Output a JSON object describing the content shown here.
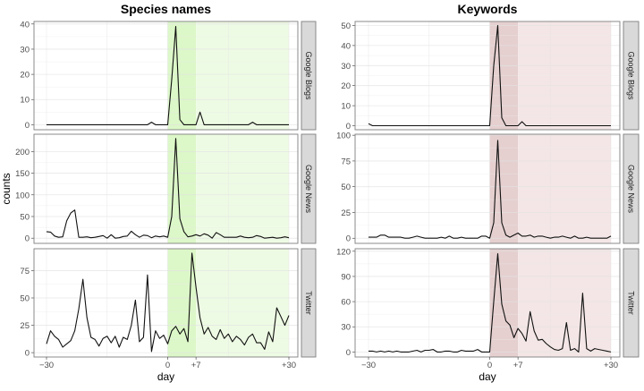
{
  "chart_data": [
    {
      "type": "line",
      "title": "Species names",
      "xlabel": "day",
      "ylabel": "counts",
      "x_range": [
        -30,
        30
      ],
      "x_ticks": [
        -30,
        0,
        7,
        30
      ],
      "x_tick_labels": [
        "−30",
        "0",
        "+7",
        "+30"
      ],
      "highlight_windows": [
        {
          "from": 0,
          "to": 7,
          "color": "#dcf7c8"
        },
        {
          "from": 7,
          "to": 30,
          "color": "#eefbe4"
        }
      ],
      "panels": [
        {
          "name": "Google Blogs",
          "ylim": [
            -2,
            41
          ],
          "y_ticks": [
            0,
            10,
            20,
            30,
            40
          ],
          "values": [
            0,
            0,
            0,
            0,
            0,
            0,
            0,
            0,
            0,
            0,
            0,
            0,
            0,
            0,
            0,
            0,
            0,
            0,
            0,
            0,
            0,
            0,
            0,
            0,
            0,
            0,
            1,
            0,
            0,
            0,
            0,
            18,
            39,
            2,
            0,
            0,
            0,
            0,
            5,
            0,
            0,
            0,
            0,
            0,
            0,
            0,
            0,
            0,
            0,
            0,
            0,
            1,
            0,
            0,
            0,
            0,
            0,
            0,
            0,
            0,
            0
          ]
        },
        {
          "name": "Google News",
          "ylim": [
            -12,
            240
          ],
          "y_ticks": [
            0,
            50,
            100,
            150,
            200
          ],
          "values": [
            15,
            14,
            5,
            2,
            3,
            40,
            58,
            65,
            2,
            2,
            3,
            1,
            2,
            4,
            6,
            0,
            8,
            0,
            1,
            4,
            5,
            16,
            8,
            2,
            7,
            6,
            1,
            5,
            3,
            5,
            2,
            50,
            230,
            45,
            15,
            3,
            5,
            8,
            5,
            10,
            7,
            0,
            13,
            8,
            2,
            2,
            2,
            2,
            5,
            2,
            1,
            2,
            6,
            4,
            0,
            1,
            2,
            0,
            1,
            3,
            1
          ]
        },
        {
          "name": "Twitter",
          "ylim": [
            -4,
            95
          ],
          "y_ticks": [
            0,
            25,
            50,
            75
          ],
          "values": [
            8,
            20,
            15,
            12,
            5,
            8,
            11,
            20,
            40,
            67,
            32,
            14,
            12,
            6,
            13,
            15,
            9,
            15,
            5,
            14,
            12,
            25,
            48,
            10,
            14,
            71,
            1,
            20,
            13,
            16,
            8,
            20,
            24,
            17,
            22,
            10,
            91,
            60,
            32,
            17,
            23,
            15,
            12,
            21,
            13,
            17,
            10,
            15,
            12,
            7,
            14,
            17,
            9,
            9,
            3,
            19,
            10,
            41,
            33,
            25,
            34
          ]
        }
      ]
    },
    {
      "type": "line",
      "title": "Keywords",
      "xlabel": "day",
      "ylabel": "counts",
      "x_range": [
        -30,
        30
      ],
      "x_ticks": [
        -30,
        0,
        7,
        30
      ],
      "x_tick_labels": [
        "−30",
        "0",
        "+7",
        "+30"
      ],
      "highlight_windows": [
        {
          "from": 0,
          "to": 7,
          "color": "#e5cfcf"
        },
        {
          "from": 7,
          "to": 30,
          "color": "#f4e6e6"
        }
      ],
      "panels": [
        {
          "name": "Google Blogs",
          "ylim": [
            -2,
            52
          ],
          "y_ticks": [
            0,
            10,
            20,
            30,
            40,
            50
          ],
          "values": [
            1,
            0,
            0,
            0,
            0,
            0,
            0,
            0,
            0,
            0,
            0,
            0,
            0,
            0,
            0,
            0,
            0,
            0,
            0,
            0,
            0,
            0,
            0,
            0,
            0,
            0,
            0,
            0,
            0,
            0,
            0,
            30,
            50,
            4,
            0,
            0,
            0,
            0,
            2,
            0,
            0,
            0,
            0,
            0,
            0,
            0,
            0,
            0,
            0,
            0,
            0,
            0,
            0,
            0,
            0,
            0,
            0,
            0,
            0,
            0,
            0
          ]
        },
        {
          "name": "Google News",
          "ylim": [
            -5,
            101
          ],
          "y_ticks": [
            0,
            25,
            50,
            75,
            100
          ],
          "values": [
            1,
            1,
            1,
            3,
            3,
            1,
            1,
            1,
            1,
            0,
            0,
            1,
            2,
            1,
            0,
            0,
            0,
            0,
            1,
            0,
            2,
            0,
            0,
            1,
            0,
            0,
            0,
            0,
            2,
            2,
            0,
            15,
            95,
            15,
            3,
            1,
            3,
            5,
            2,
            2,
            3,
            1,
            2,
            2,
            1,
            0,
            1,
            1,
            2,
            1,
            0,
            2,
            0,
            0,
            1,
            0,
            0,
            0,
            0,
            0,
            2
          ]
        },
        {
          "name": "Twitter",
          "ylim": [
            -6,
            123
          ],
          "y_ticks": [
            0,
            30,
            60,
            90,
            120
          ],
          "values": [
            1,
            1,
            0,
            1,
            0,
            1,
            0,
            1,
            0,
            0,
            0,
            1,
            2,
            0,
            2,
            2,
            3,
            0,
            0,
            1,
            1,
            0,
            0,
            2,
            1,
            1,
            1,
            3,
            0,
            0,
            0,
            60,
            117,
            57,
            37,
            32,
            17,
            28,
            22,
            13,
            48,
            25,
            14,
            15,
            10,
            6,
            3,
            2,
            4,
            35,
            2,
            4,
            0,
            70,
            4,
            1,
            4,
            3,
            2,
            1,
            0
          ]
        }
      ]
    }
  ]
}
